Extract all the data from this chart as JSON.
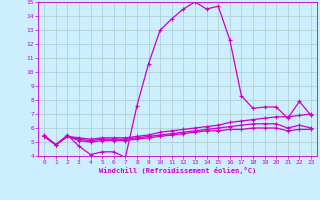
{
  "background_color": "#cceeff",
  "grid_color": "#aacccc",
  "line_color": "#cc00cc",
  "xlabel": "Windchill (Refroidissement éolien,°C)",
  "xlim": [
    -0.5,
    23.5
  ],
  "ylim": [
    4,
    15
  ],
  "xticks": [
    0,
    1,
    2,
    3,
    4,
    5,
    6,
    7,
    8,
    9,
    10,
    11,
    12,
    13,
    14,
    15,
    16,
    17,
    18,
    19,
    20,
    21,
    22,
    23
  ],
  "yticks": [
    4,
    5,
    6,
    7,
    8,
    9,
    10,
    11,
    12,
    13,
    14,
    15
  ],
  "curve1_x": [
    0,
    1,
    2,
    3,
    4,
    5,
    6,
    7,
    8,
    9,
    10,
    11,
    12,
    13,
    14,
    15,
    16,
    17,
    18,
    19,
    20,
    21,
    22,
    23
  ],
  "curve1_y": [
    5.5,
    4.8,
    5.5,
    4.7,
    4.1,
    4.3,
    4.3,
    3.9,
    7.6,
    10.6,
    13.0,
    13.8,
    14.5,
    15.0,
    14.5,
    14.7,
    12.3,
    8.3,
    7.4,
    7.5,
    7.5,
    6.7,
    7.9,
    6.9
  ],
  "curve2_x": [
    0,
    1,
    2,
    3,
    4,
    5,
    6,
    7,
    8,
    9,
    10,
    11,
    12,
    13,
    14,
    15,
    16,
    17,
    18,
    19,
    20,
    21,
    22,
    23
  ],
  "curve2_y": [
    5.4,
    4.8,
    5.4,
    5.3,
    5.2,
    5.3,
    5.3,
    5.3,
    5.4,
    5.5,
    5.7,
    5.8,
    5.9,
    6.0,
    6.1,
    6.2,
    6.4,
    6.5,
    6.6,
    6.7,
    6.8,
    6.8,
    6.9,
    7.0
  ],
  "curve3_x": [
    0,
    1,
    2,
    3,
    4,
    5,
    6,
    7,
    8,
    9,
    10,
    11,
    12,
    13,
    14,
    15,
    16,
    17,
    18,
    19,
    20,
    21,
    22,
    23
  ],
  "curve3_y": [
    5.4,
    4.8,
    5.4,
    5.2,
    5.1,
    5.2,
    5.2,
    5.2,
    5.3,
    5.4,
    5.5,
    5.6,
    5.7,
    5.8,
    5.9,
    6.0,
    6.1,
    6.2,
    6.3,
    6.3,
    6.3,
    6.0,
    6.2,
    6.0
  ],
  "curve4_x": [
    0,
    1,
    2,
    3,
    4,
    5,
    6,
    7,
    8,
    9,
    10,
    11,
    12,
    13,
    14,
    15,
    16,
    17,
    18,
    19,
    20,
    21,
    22,
    23
  ],
  "curve4_y": [
    5.4,
    4.8,
    5.4,
    5.1,
    5.0,
    5.1,
    5.1,
    5.1,
    5.2,
    5.3,
    5.4,
    5.5,
    5.6,
    5.7,
    5.8,
    5.8,
    5.9,
    5.9,
    6.0,
    6.0,
    6.0,
    5.8,
    5.9,
    5.9
  ]
}
